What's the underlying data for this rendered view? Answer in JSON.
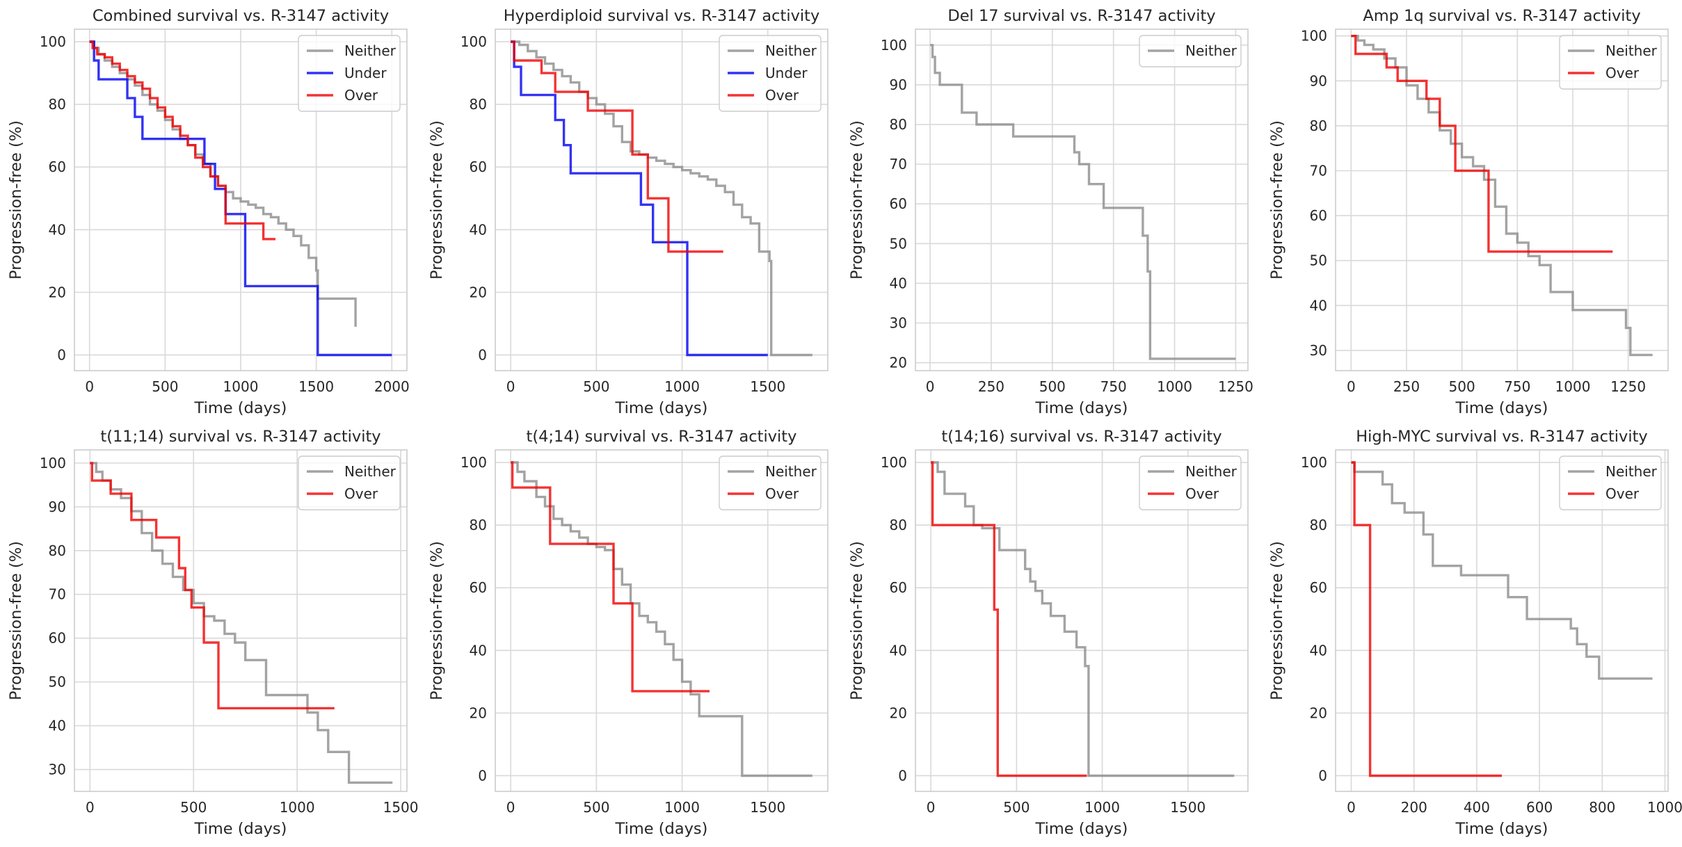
{
  "figure": {
    "colors": {
      "Neither": "#8c8c8c",
      "Under": "#0000f0",
      "Over": "#f00000",
      "grid": "#d9d9d9",
      "spine": "#cccccc"
    }
  },
  "chart_data": [
    {
      "type": "line",
      "title": "Combined survival vs. R-3147 activity",
      "xlabel": "Time (days)",
      "ylabel": "Progression-free (%)",
      "xlim": [
        -100,
        2100
      ],
      "ylim": [
        -5,
        104
      ],
      "xticks": [
        0,
        500,
        1000,
        1500,
        2000
      ],
      "yticks": [
        0,
        20,
        40,
        60,
        80,
        100
      ],
      "legend": [
        "Neither",
        "Under",
        "Over"
      ],
      "series": [
        {
          "name": "Neither",
          "x": [
            0,
            30,
            60,
            100,
            150,
            200,
            250,
            300,
            350,
            400,
            450,
            500,
            550,
            600,
            650,
            700,
            750,
            800,
            850,
            900,
            950,
            1000,
            1050,
            1100,
            1150,
            1200,
            1250,
            1300,
            1350,
            1400,
            1450,
            1500,
            1510,
            1750,
            1760
          ],
          "y": [
            100,
            98,
            96,
            94,
            92,
            90,
            88,
            86,
            83,
            80,
            78,
            75,
            72,
            69,
            67,
            64,
            61,
            57,
            54,
            52,
            50,
            49,
            48,
            47,
            45,
            44,
            42,
            40,
            38,
            35,
            31,
            27,
            18,
            18,
            9
          ]
        },
        {
          "name": "Under",
          "x": [
            0,
            30,
            60,
            250,
            300,
            350,
            760,
            830,
            900,
            1030,
            1510,
            2000
          ],
          "y": [
            100,
            94,
            88,
            82,
            76,
            69,
            61,
            53,
            45,
            22,
            0,
            0
          ]
        },
        {
          "name": "Over",
          "x": [
            0,
            20,
            50,
            100,
            150,
            200,
            250,
            300,
            350,
            400,
            450,
            500,
            550,
            600,
            650,
            700,
            750,
            800,
            850,
            900,
            1100,
            1150,
            1230
          ],
          "y": [
            100,
            98,
            96,
            95,
            93,
            91,
            89,
            87,
            85,
            82,
            79,
            76,
            73,
            70,
            67,
            63,
            60,
            57,
            54,
            42,
            42,
            37,
            37
          ]
        }
      ]
    },
    {
      "type": "line",
      "title": "Hyperdiploid survival vs. R-3147 activity",
      "xlabel": "Time (days)",
      "ylabel": "Progression-free (%)",
      "xlim": [
        -90,
        1850
      ],
      "ylim": [
        -5,
        104
      ],
      "xticks": [
        0,
        500,
        1000,
        1500
      ],
      "yticks": [
        0,
        20,
        40,
        60,
        80,
        100
      ],
      "legend": [
        "Neither",
        "Under",
        "Over"
      ],
      "series": [
        {
          "name": "Neither",
          "x": [
            0,
            50,
            100,
            150,
            200,
            250,
            300,
            350,
            400,
            450,
            500,
            550,
            600,
            650,
            700,
            750,
            800,
            850,
            900,
            950,
            1000,
            1050,
            1100,
            1150,
            1200,
            1250,
            1300,
            1350,
            1400,
            1450,
            1490,
            1510,
            1520,
            1760
          ],
          "y": [
            100,
            99,
            97,
            95,
            93,
            91,
            89,
            87,
            84,
            82,
            80,
            77,
            73,
            68,
            65,
            64,
            63,
            62,
            61,
            60,
            59,
            58,
            57,
            56,
            54,
            52,
            48,
            44,
            42,
            33,
            33,
            30,
            0,
            0
          ]
        },
        {
          "name": "Under",
          "x": [
            0,
            20,
            60,
            260,
            310,
            350,
            760,
            830,
            1030,
            1500
          ],
          "y": [
            100,
            92,
            83,
            75,
            67,
            58,
            48,
            36,
            0,
            0
          ]
        },
        {
          "name": "Over",
          "x": [
            0,
            20,
            180,
            260,
            450,
            710,
            800,
            920,
            1240
          ],
          "y": [
            100,
            94,
            90,
            84,
            78,
            64,
            50,
            33,
            33
          ]
        }
      ]
    },
    {
      "type": "line",
      "title": "Del 17 survival vs. R-3147 activity",
      "xlabel": "Time (days)",
      "ylabel": "Progression-free (%)",
      "xlim": [
        -60,
        1300
      ],
      "ylim": [
        18,
        104
      ],
      "xticks": [
        0,
        250,
        500,
        750,
        1000,
        1250
      ],
      "yticks": [
        20,
        30,
        40,
        50,
        60,
        70,
        80,
        90,
        100
      ],
      "legend": [
        "Neither"
      ],
      "series": [
        {
          "name": "Neither",
          "x": [
            0,
            10,
            20,
            40,
            130,
            190,
            340,
            590,
            610,
            650,
            710,
            870,
            890,
            900,
            1250
          ],
          "y": [
            100,
            97,
            93,
            90,
            83,
            80,
            77,
            73,
            70,
            65,
            59,
            52,
            43,
            21,
            21
          ]
        }
      ]
    },
    {
      "type": "line",
      "title": "Amp 1q survival vs. R-3147 activity",
      "xlabel": "Time (days)",
      "ylabel": "Progression-free (%)",
      "xlim": [
        -70,
        1430
      ],
      "ylim": [
        25.5,
        101.5
      ],
      "xticks": [
        0,
        250,
        500,
        750,
        1000,
        1250
      ],
      "yticks": [
        30,
        40,
        50,
        60,
        70,
        80,
        90,
        100
      ],
      "legend": [
        "Neither",
        "Over"
      ],
      "series": [
        {
          "name": "Neither",
          "x": [
            0,
            30,
            60,
            100,
            150,
            200,
            250,
            300,
            350,
            400,
            450,
            500,
            550,
            600,
            650,
            700,
            750,
            800,
            850,
            900,
            1000,
            1100,
            1240,
            1260,
            1280,
            1360
          ],
          "y": [
            100,
            99,
            98,
            97,
            95,
            93,
            89,
            86,
            83,
            79,
            76,
            73,
            71,
            68,
            62,
            56,
            54,
            51,
            49,
            43,
            39,
            39,
            35,
            29,
            29,
            29
          ]
        },
        {
          "name": "Over",
          "x": [
            0,
            20,
            160,
            210,
            340,
            400,
            470,
            620,
            1180
          ],
          "y": [
            100,
            96,
            93,
            90,
            86,
            80,
            70,
            52,
            52
          ]
        }
      ]
    },
    {
      "type": "line",
      "title": "t(11;14) survival vs. R-3147 activity",
      "xlabel": "Time (days)",
      "ylabel": "Progression-free (%)",
      "xlim": [
        -75,
        1530
      ],
      "ylim": [
        25,
        103
      ],
      "xticks": [
        0,
        500,
        1000,
        1500
      ],
      "yticks": [
        30,
        40,
        50,
        60,
        70,
        80,
        90,
        100
      ],
      "legend": [
        "Neither",
        "Over"
      ],
      "series": [
        {
          "name": "Neither",
          "x": [
            0,
            30,
            60,
            100,
            150,
            200,
            250,
            300,
            350,
            400,
            450,
            500,
            550,
            600,
            650,
            700,
            750,
            850,
            1050,
            1100,
            1150,
            1250,
            1460
          ],
          "y": [
            100,
            98,
            96,
            94,
            92,
            89,
            84,
            80,
            77,
            74,
            71,
            68,
            65,
            64,
            61,
            59,
            55,
            47,
            43,
            39,
            34,
            27,
            27
          ]
        },
        {
          "name": "Over",
          "x": [
            0,
            10,
            100,
            200,
            320,
            430,
            460,
            490,
            550,
            620,
            1180
          ],
          "y": [
            100,
            96,
            93,
            87,
            83,
            76,
            71,
            67,
            59,
            44,
            44
          ]
        }
      ]
    },
    {
      "type": "line",
      "title": "t(4;14) survival vs. R-3147 activity",
      "xlabel": "Time (days)",
      "ylabel": "Progression-free (%)",
      "xlim": [
        -90,
        1850
      ],
      "ylim": [
        -5,
        104
      ],
      "xticks": [
        0,
        500,
        1000,
        1500
      ],
      "yticks": [
        0,
        20,
        40,
        60,
        80,
        100
      ],
      "legend": [
        "Neither",
        "Over"
      ],
      "series": [
        {
          "name": "Neither",
          "x": [
            0,
            40,
            80,
            150,
            200,
            250,
            300,
            350,
            400,
            450,
            500,
            550,
            600,
            650,
            700,
            750,
            800,
            850,
            900,
            950,
            1000,
            1050,
            1100,
            1350,
            1760
          ],
          "y": [
            100,
            97,
            94,
            89,
            86,
            82,
            80,
            78,
            76,
            74,
            73,
            72,
            66,
            61,
            55,
            51,
            49,
            46,
            42,
            37,
            30,
            26,
            19,
            0,
            0
          ]
        },
        {
          "name": "Over",
          "x": [
            0,
            10,
            230,
            600,
            710,
            1160
          ],
          "y": [
            100,
            92,
            74,
            55,
            27,
            27
          ]
        }
      ]
    },
    {
      "type": "line",
      "title": "t(14;16) survival vs. R-3147 activity",
      "xlabel": "Time (days)",
      "ylabel": "Progression-free (%)",
      "xlim": [
        -90,
        1850
      ],
      "ylim": [
        -5,
        104
      ],
      "xticks": [
        0,
        500,
        1000,
        1500
      ],
      "yticks": [
        0,
        20,
        40,
        60,
        80,
        100
      ],
      "legend": [
        "Neither",
        "Over"
      ],
      "series": [
        {
          "name": "Neither",
          "x": [
            0,
            40,
            80,
            200,
            250,
            300,
            400,
            550,
            580,
            610,
            650,
            700,
            780,
            850,
            900,
            920,
            1770
          ],
          "y": [
            100,
            97,
            90,
            86,
            80,
            79,
            72,
            66,
            62,
            59,
            55,
            51,
            46,
            41,
            35,
            0,
            0
          ]
        },
        {
          "name": "Over",
          "x": [
            0,
            10,
            370,
            390,
            400,
            910
          ],
          "y": [
            100,
            80,
            53,
            0,
            0,
            0
          ]
        }
      ]
    },
    {
      "type": "line",
      "title": "High-MYC survival vs. R-3147 activity",
      "xlabel": "Time (days)",
      "ylabel": "Progression-free (%)",
      "xlim": [
        -50,
        1010
      ],
      "ylim": [
        -5,
        104
      ],
      "xticks": [
        0,
        200,
        400,
        600,
        800,
        1000
      ],
      "yticks": [
        0,
        20,
        40,
        60,
        80,
        100
      ],
      "legend": [
        "Neither",
        "Over"
      ],
      "series": [
        {
          "name": "Neither",
          "x": [
            0,
            10,
            100,
            130,
            170,
            230,
            260,
            350,
            500,
            560,
            700,
            720,
            750,
            790,
            960
          ],
          "y": [
            100,
            97,
            93,
            87,
            84,
            77,
            67,
            64,
            57,
            50,
            47,
            42,
            38,
            31,
            31
          ]
        },
        {
          "name": "Over",
          "x": [
            0,
            10,
            50,
            60,
            480
          ],
          "y": [
            100,
            80,
            80,
            0,
            0
          ]
        }
      ]
    }
  ]
}
